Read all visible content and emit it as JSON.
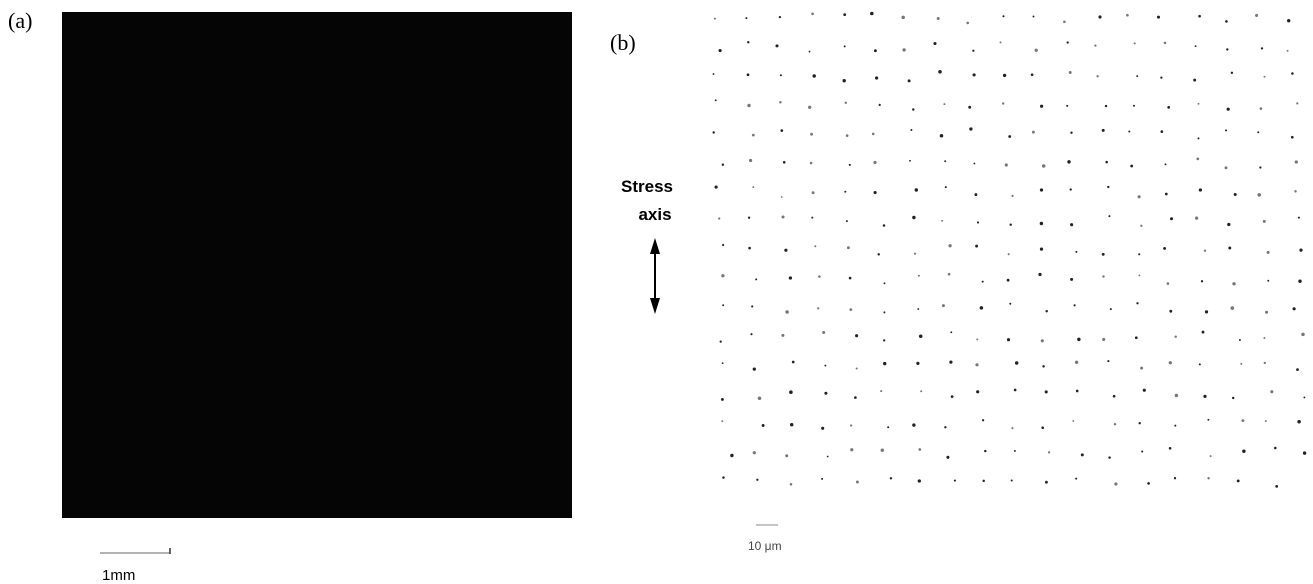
{
  "panel_a": {
    "label": "(a)",
    "scale_bar": "1mm"
  },
  "panel_b": {
    "label": "(b)",
    "annotation": [
      "Stress",
      "axis"
    ],
    "scale_bar": "10 μm"
  }
}
